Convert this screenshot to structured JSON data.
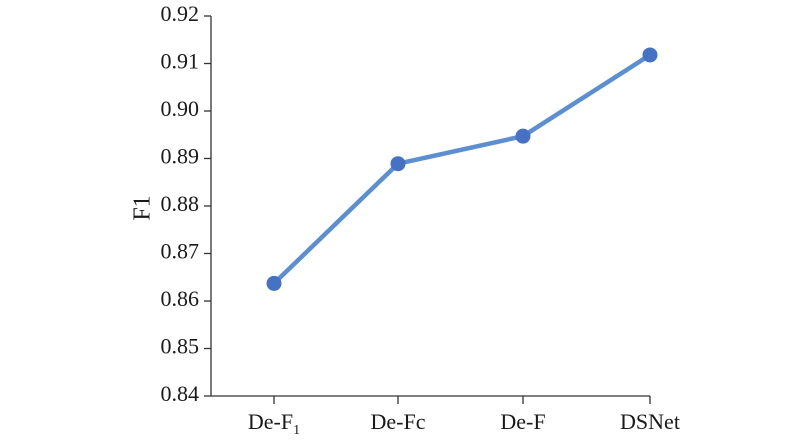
{
  "chart_data": {
    "type": "line",
    "ylabel": "F1",
    "ylim": [
      0.84,
      0.92
    ],
    "yticks": [
      0.84,
      0.85,
      0.86,
      0.87,
      0.88,
      0.89,
      0.9,
      0.91,
      0.92
    ],
    "ytick_labels": [
      "0.84",
      "0.85",
      "0.86",
      "0.87",
      "0.88",
      "0.89",
      "0.90",
      "0.91",
      "0.92"
    ],
    "categories": [
      {
        "base": "De-F",
        "sub": "1"
      },
      {
        "base": "De-Fc",
        "sub": ""
      },
      {
        "base": "De-F",
        "sub": ""
      },
      {
        "base": "DSNet",
        "sub": ""
      }
    ],
    "series": [
      {
        "values": [
          0.8637,
          0.8889,
          0.8947,
          0.9118
        ],
        "color": "#5b8fd1",
        "marker_color": "#4572c4"
      }
    ],
    "grid": false
  }
}
